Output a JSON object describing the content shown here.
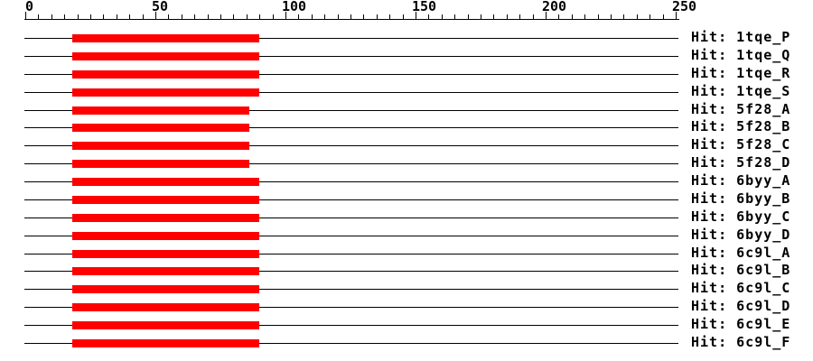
{
  "chart_data": {
    "type": "bar",
    "orientation": "horizontal_span",
    "title": "",
    "background": "#ffffff",
    "bar_color": "#ff0000",
    "line_color": "#000000",
    "text_color": "#000000",
    "axis": {
      "position": "top",
      "min": 0,
      "max": 250,
      "major_step": 50,
      "minor_step": 5,
      "tick_labels": [
        "0",
        "50",
        "100",
        "150",
        "200",
        "250"
      ]
    },
    "rows": [
      {
        "label": "Hit: 1tqe_P",
        "start": 18,
        "end": 90
      },
      {
        "label": "Hit: 1tqe_Q",
        "start": 18,
        "end": 90
      },
      {
        "label": "Hit: 1tqe_R",
        "start": 18,
        "end": 90
      },
      {
        "label": "Hit: 1tqe_S",
        "start": 18,
        "end": 90
      },
      {
        "label": "Hit: 5f28_A",
        "start": 18,
        "end": 86
      },
      {
        "label": "Hit: 5f28_B",
        "start": 18,
        "end": 86
      },
      {
        "label": "Hit: 5f28_C",
        "start": 18,
        "end": 86
      },
      {
        "label": "Hit: 5f28_D",
        "start": 18,
        "end": 86
      },
      {
        "label": "Hit: 6byy_A",
        "start": 18,
        "end": 90
      },
      {
        "label": "Hit: 6byy_B",
        "start": 18,
        "end": 90
      },
      {
        "label": "Hit: 6byy_C",
        "start": 18,
        "end": 90
      },
      {
        "label": "Hit: 6byy_D",
        "start": 18,
        "end": 90
      },
      {
        "label": "Hit: 6c9l_A",
        "start": 18,
        "end": 90
      },
      {
        "label": "Hit: 6c9l_B",
        "start": 18,
        "end": 90
      },
      {
        "label": "Hit: 6c9l_C",
        "start": 18,
        "end": 90
      },
      {
        "label": "Hit: 6c9l_D",
        "start": 18,
        "end": 90
      },
      {
        "label": "Hit: 6c9l_E",
        "start": 18,
        "end": 90
      },
      {
        "label": "Hit: 6c9l_F",
        "start": 18,
        "end": 90
      }
    ]
  }
}
